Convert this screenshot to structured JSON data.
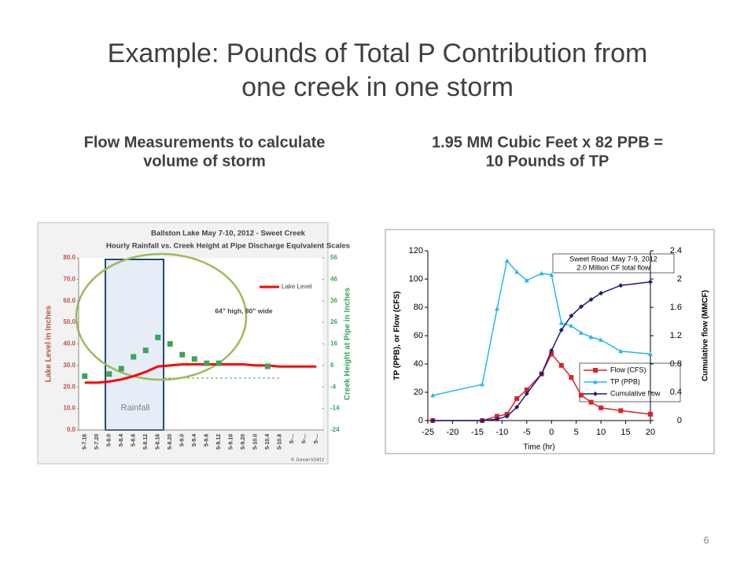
{
  "title_lines": [
    "Example:  Pounds of Total P Contribution from",
    "one creek in one storm"
  ],
  "left_heading": [
    "Flow Measurements to calculate",
    "volume of storm"
  ],
  "right_heading": [
    "1.95 MM Cubic Feet x 82 PPB =",
    "10 Pounds of TP"
  ],
  "page_number": "6",
  "chart_data": [
    {
      "type": "line",
      "title_lines": [
        "Ballston Lake May 7-10, 2012 - Sweet Creek",
        "Hourly Rainfall vs. Creek Height at Pipe Discharge Equivalent Scales"
      ],
      "y_label": "Lake Level in Inches",
      "y2_label": "Creek Height at Pipe in Inches",
      "annotations": [
        "64\" high, 80\" wide",
        "Rainfall",
        "R. Duncan 5/24/12"
      ],
      "categories": [
        "5-7.16",
        "5-7.20",
        "5-8.0",
        "5-8.4",
        "5-8.8",
        "5-8.12",
        "5-8.16",
        "5-8.20",
        "5-9.0",
        "5-9.4",
        "5-9.8",
        "5-9.12",
        "5-9.16",
        "5-9.20",
        "5-10.0",
        "5-10.4",
        "5-10.8",
        "5-...",
        "5-...",
        "5-..."
      ],
      "series": [
        {
          "name": "Lake Level",
          "color": "#ff0000",
          "style": "line",
          "values": [
            22,
            22,
            22.5,
            23.5,
            25,
            27,
            29.5,
            30,
            30.5,
            30.5,
            30.5,
            30.5,
            30.5,
            30.5,
            30,
            30,
            29.5,
            29.5,
            29.5,
            29.5
          ]
        },
        {
          "color": "#3aa655",
          "style": "marker",
          "axis": "y2",
          "values": [
            1,
            null,
            2,
            4.5,
            10,
            13,
            19,
            16,
            11,
            9,
            7,
            7,
            null,
            null,
            null,
            5.6,
            null,
            null,
            null,
            null
          ]
        }
      ],
      "ylim": [
        0,
        80
      ],
      "yticks": [
        {
          "value": 0,
          "label": "0.0"
        },
        {
          "value": 10,
          "label": "10.0"
        },
        {
          "value": 20,
          "label": "20.0"
        },
        {
          "value": 30,
          "label": "30.0"
        },
        {
          "value": 40,
          "label": "40.0"
        },
        {
          "value": 50,
          "label": "50.0"
        },
        {
          "value": 60,
          "label": "60.0"
        },
        {
          "value": 70,
          "label": "70.0"
        },
        {
          "value": 80,
          "label": "80.0"
        }
      ],
      "y2lim": [
        -24,
        56
      ],
      "y2ticks": [
        -24,
        -14,
        -4,
        6,
        16,
        26,
        36,
        46,
        56
      ],
      "legend": "upper-right"
    },
    {
      "type": "scatter-line",
      "annotations": [
        "Sweet Road :May 7-9, 2012",
        "2.0 Million CF total flow"
      ],
      "x_label": "Time (hr)",
      "y_label": "TP (PPB), or Flow (CFS)",
      "y2_label": "Cumulative flow (MMCF)",
      "x": [
        -24,
        -14,
        -11,
        -9,
        -7,
        -5,
        -2,
        0,
        2,
        4,
        6,
        8,
        10,
        14,
        20
      ],
      "series": [
        {
          "name": "Flow (CFS)",
          "color": "#d9232a",
          "marker": "square",
          "values": [
            0,
            0,
            3,
            4.5,
            15.5,
            21.7,
            33,
            47,
            39,
            30.5,
            18,
            13,
            9,
            7,
            4.5
          ]
        },
        {
          "name": "TP (PPB)",
          "color": "#29b6e8",
          "marker": "triangle",
          "values": [
            17.8,
            25.6,
            79,
            113,
            105,
            99,
            104,
            103,
            69,
            67,
            62,
            59,
            57,
            49,
            47
          ]
        },
        {
          "name": "Cumulative flow",
          "color": "#1b1f7a",
          "marker": "diamond",
          "axis": "y2",
          "values": [
            0,
            0,
            0.02,
            0.06,
            0.19,
            0.38,
            0.66,
            0.99,
            1.28,
            1.48,
            1.61,
            1.71,
            1.8,
            1.91,
            1.96
          ]
        }
      ],
      "xlim": [
        -25,
        20
      ],
      "xticks": [
        -25,
        -20,
        -15,
        -10,
        -5,
        0,
        5,
        10,
        15,
        20
      ],
      "ylim": [
        0,
        120
      ],
      "yticks": [
        0,
        20,
        40,
        60,
        80,
        100,
        120
      ],
      "y2lim": [
        0,
        2.4
      ],
      "y2ticks": [
        0,
        0.4,
        0.8,
        1.2,
        1.6,
        2,
        2.4
      ],
      "legend": "lower-right"
    }
  ]
}
